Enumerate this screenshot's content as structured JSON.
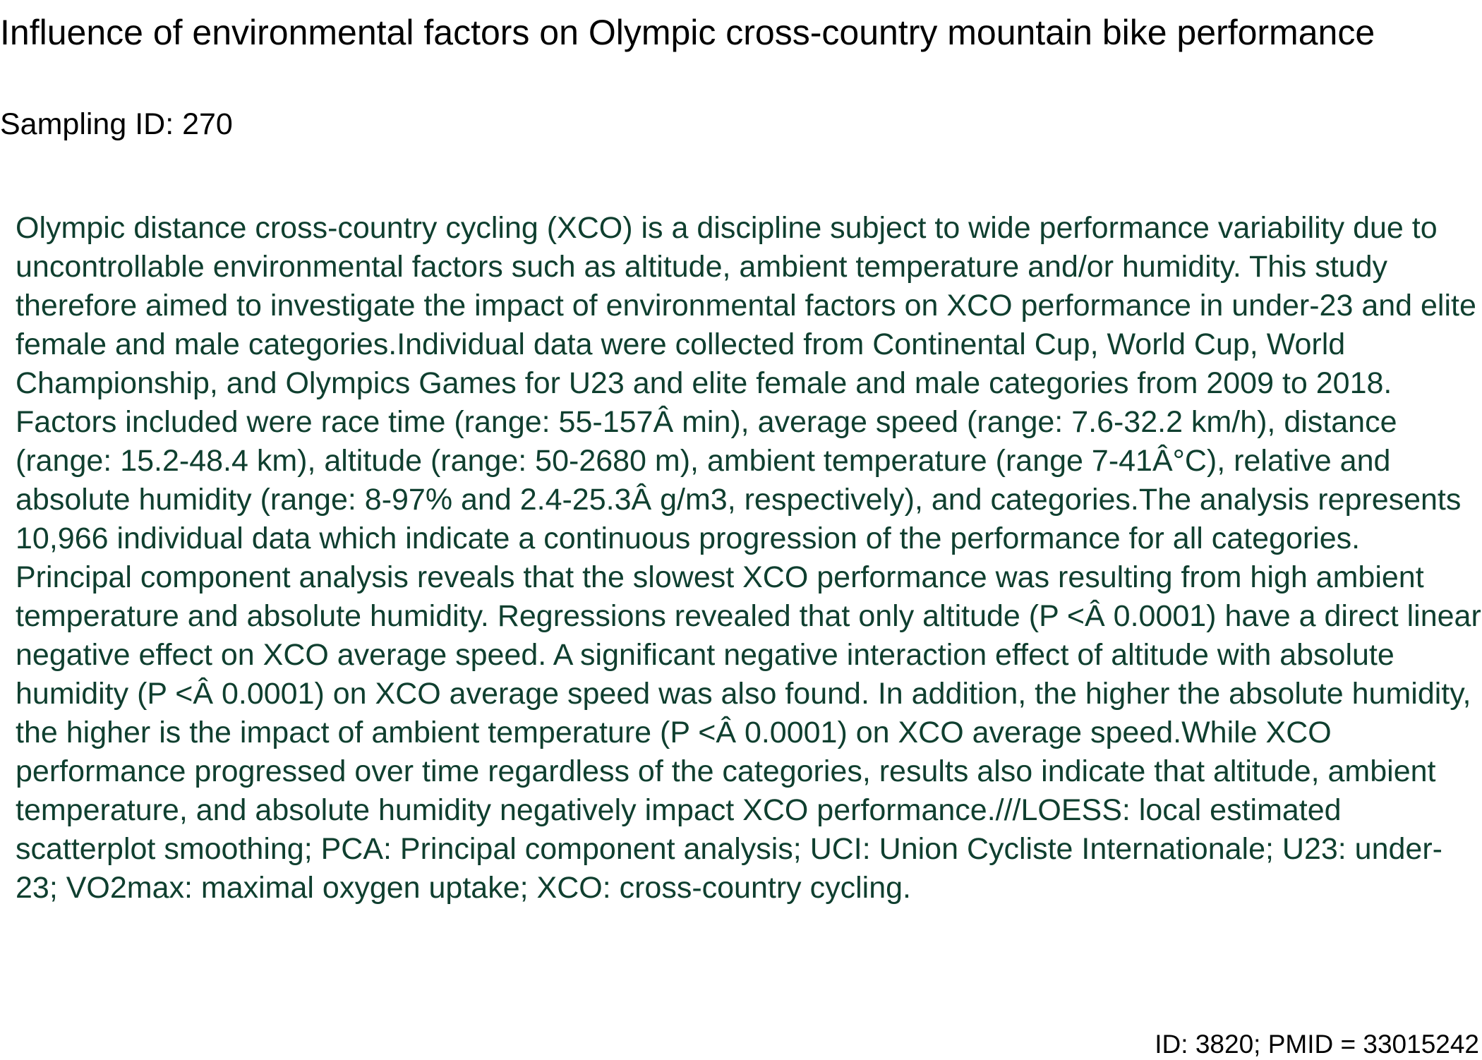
{
  "document": {
    "title": "Influence of environmental factors on Olympic cross-country mountain bike performance",
    "sampling_id": "Sampling ID: 270",
    "abstract": "Olympic distance cross-country cycling (XCO) is a discipline subject to wide performance variability due to uncontrollable environmental factors such as altitude, ambient temperature and/or humidity. This study therefore aimed to investigate the impact of environmental factors on XCO performance in under-23 and elite female and male categories.Individual data were collected from Continental Cup, World Cup, World Championship, and Olympics Games for U23 and elite female and male categories from 2009 to 2018. Factors included were race time (range: 55-157Â min), average speed (range: 7.6-32.2 km/h), distance (range: 15.2-48.4 km), altitude (range: 50-2680 m), ambient temperature (range 7-41Â°C), relative and absolute humidity (range: 8-97% and 2.4-25.3Â g/m3, respectively), and categories.The analysis represents 10,966 individual data which indicate a continuous progression of the performance for all categories. Principal component analysis reveals that the slowest XCO performance was resulting from high ambient temperature and absolute humidity. Regressions revealed that only altitude (P <Â 0.0001) have a direct linear negative effect on XCO average speed. A significant negative interaction effect of altitude with absolute humidity (P <Â 0.0001) on XCO average speed was also found. In addition, the higher the absolute humidity, the higher is the impact of ambient temperature (P <Â 0.0001) on XCO average speed.While XCO performance progressed over time regardless of the categories, results also indicate that altitude, ambient temperature, and absolute humidity negatively impact XCO performance.///LOESS: local estimated scatterplot smoothing; PCA: Principal component analysis; UCI: Union Cycliste Internationale; U23: under-23; VO2max: maximal oxygen uptake; XCO: cross-country cycling.",
    "footer_id": "ID: 3820; PMID = 33015242"
  },
  "colors": {
    "title_text": "#000000",
    "abstract_text": "#0f3f2f",
    "background": "#ffffff"
  }
}
